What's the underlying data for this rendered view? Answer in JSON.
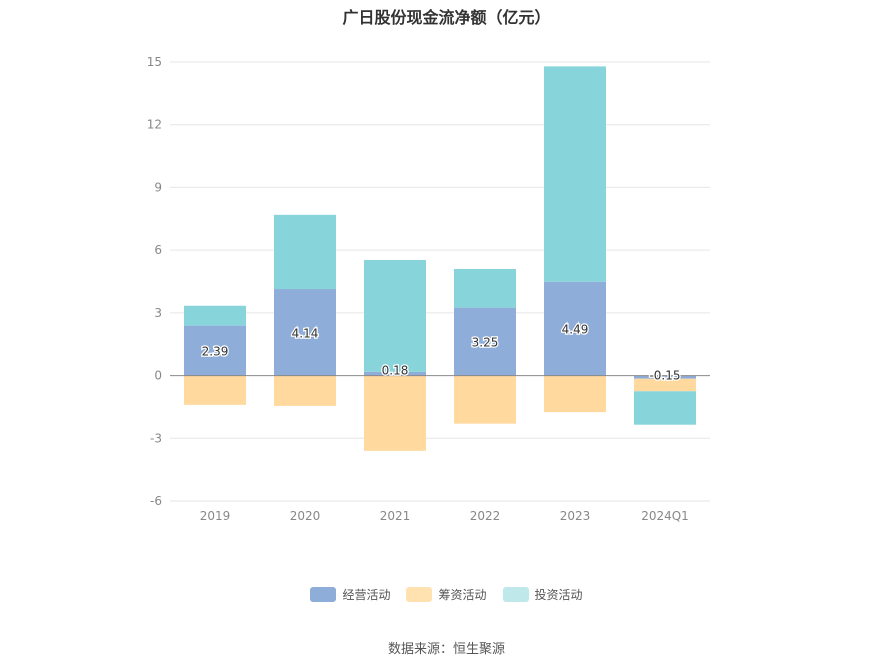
{
  "chart_data": {
    "type": "bar",
    "stacked": true,
    "title": "广日股份现金流净额（亿元）",
    "categories": [
      "2019",
      "2020",
      "2021",
      "2022",
      "2023",
      "2024Q1"
    ],
    "series": [
      {
        "name": "经营活动",
        "color": "#8eadd9",
        "values": [
          2.39,
          4.14,
          0.18,
          3.25,
          4.49,
          -0.15
        ]
      },
      {
        "name": "筹资活动",
        "color": "#ffd99e",
        "values": [
          -1.4,
          -1.45,
          -3.6,
          -2.3,
          -1.75,
          -0.6
        ]
      },
      {
        "name": "投资活动",
        "color": "#87d5da",
        "values": [
          0.95,
          3.55,
          5.35,
          1.85,
          10.3,
          -1.6
        ]
      }
    ],
    "data_labels": [
      "2.39",
      "4.14",
      "0.18",
      "3.25",
      "4.49",
      "-0.15"
    ],
    "yticks": [
      "15",
      "12",
      "9",
      "6",
      "3",
      "0",
      "-3",
      "-6"
    ],
    "ylim": [
      -6,
      15
    ],
    "grid": true,
    "legend": "bottom"
  },
  "source_text": "数据来源：恒生聚源"
}
